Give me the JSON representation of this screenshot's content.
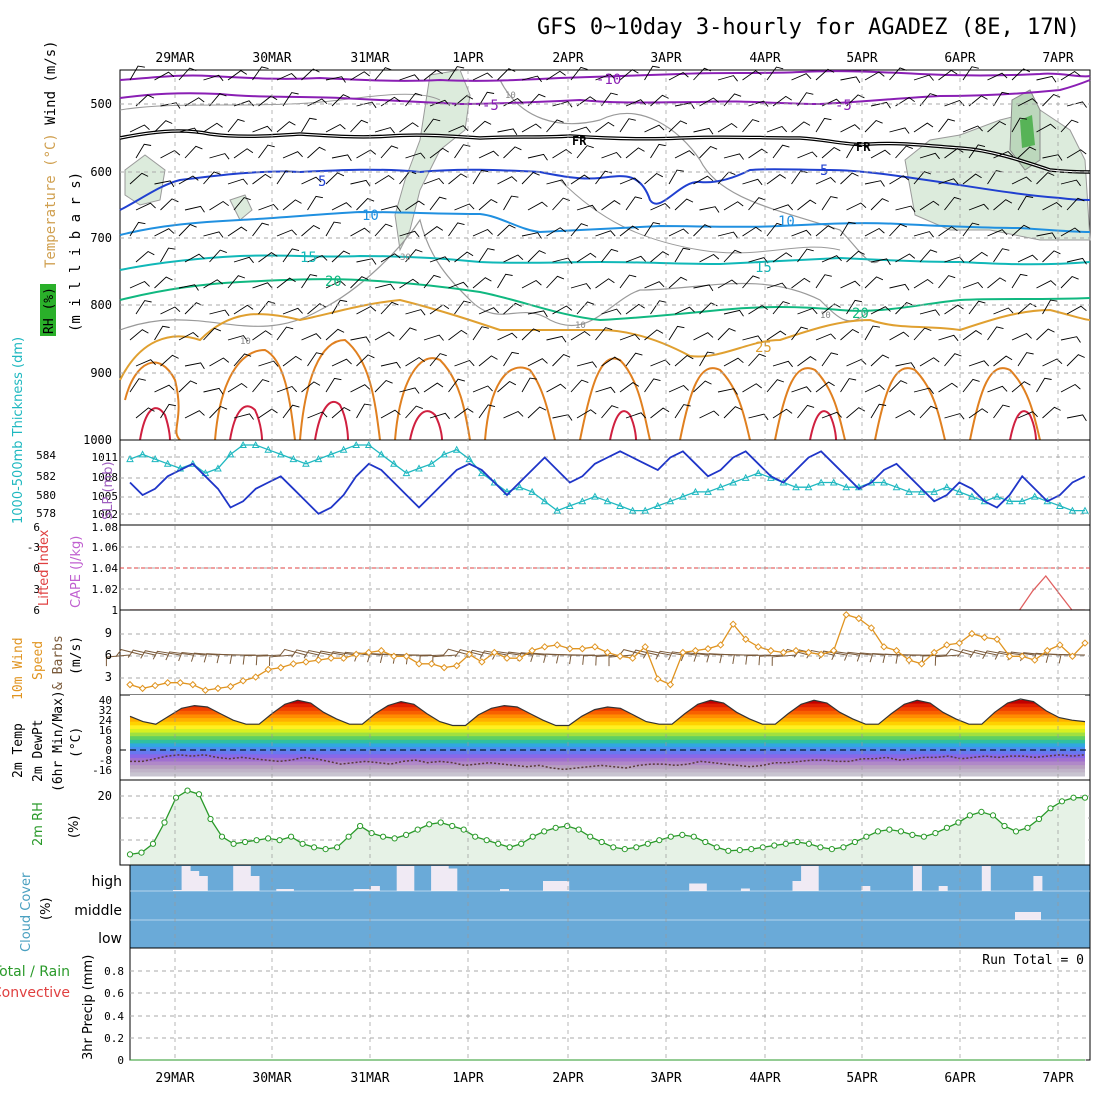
{
  "header": {
    "title": "GFS 0~10day 3-hourly for AGADEZ (8E, 17N)"
  },
  "dates": [
    "29MAR",
    "30MAR",
    "31MAR",
    "1APR",
    "2APR",
    "3APR",
    "4APR",
    "5APR",
    "6APR",
    "7APR"
  ],
  "colors": {
    "grid": "#aaaaaa",
    "rh_shade": "#d8ebd8",
    "rh_line": "#2a9a2a",
    "slp_line": "#1f35c8",
    "thickness_line": "#1fb8c0",
    "wind_speed_line": "#e09420",
    "barb": "#7a5a3a",
    "cloud_bg": "#6aaad8",
    "cape_line": "#e06060",
    "lifted_zero": "#e04040"
  },
  "panels": {
    "upper": {
      "ylabels": {
        "wind": "Wind (m/s)",
        "temp": "Temperature (°C)",
        "rh": "RH (%)",
        "units": "(m i l l i b a r s)"
      },
      "pressure_levels": [
        "500",
        "600",
        "700",
        "800",
        "900",
        "1000"
      ],
      "contour_labels": {
        "temp_neg10": "-10",
        "temp_neg5a": "-5",
        "temp_neg5b": "-5",
        "fr_a": "FR",
        "fr_b": "FR",
        "temp_5a": "5",
        "temp_5b": "5",
        "temp_10a": "10",
        "temp_10b": "10",
        "temp_15a": "15",
        "temp_15b": "15",
        "temp_20a": "20",
        "temp_20b": "20",
        "temp_25": "25",
        "rh_10a": "10",
        "rh_10b": "10",
        "rh_10c": "10",
        "rh_10d": "10",
        "rh_30": "30"
      }
    },
    "slp": {
      "label_thick": "1000-500mb Thickness (dm)",
      "label_slp": "SLP (mb)",
      "thick_ticks": [
        "584",
        "582",
        "580",
        "578"
      ],
      "slp_ticks": [
        "1011",
        "1008",
        "1005",
        "1002"
      ]
    },
    "cape": {
      "label_li": "Lifted Index",
      "label_cape": "CAPE (J/kg)",
      "li_ticks": [
        "6",
        "-3",
        "0",
        "3",
        "6"
      ],
      "cape_ticks": [
        "1.08",
        "1.06",
        "1.04",
        "1.02",
        "1"
      ]
    },
    "wind10": {
      "label1": "10m Wind",
      "label2": "Speed",
      "label3": "& Barbs",
      "units": "(m/s)",
      "ticks": [
        "9",
        "6",
        "3"
      ]
    },
    "temp2m": {
      "label1": "2m Temp",
      "label2": "2m DewPt",
      "label3": "(6hr Min/Max)",
      "units": "(°C)",
      "ticks": [
        "40",
        "32",
        "24",
        "16",
        "8",
        "0",
        "-8",
        "-16"
      ]
    },
    "rh2m": {
      "label": "2m RH",
      "units": "(%)",
      "ticks": [
        "20"
      ]
    },
    "cloud": {
      "label": "Cloud Cover",
      "units": "(%)",
      "levels": [
        "high",
        "middle",
        "low"
      ]
    },
    "precip": {
      "label1": "Total / Rain",
      "label2": "Convective",
      "label3": "3hr Precip (mm)",
      "ticks": [
        "0.8",
        "0.6",
        "0.4",
        "0.2",
        "0"
      ],
      "run_total": "Run Total = 0"
    }
  },
  "chart_data": [
    {
      "type": "line",
      "name_ref": "slp",
      "ylim": [
        1001,
        1013
      ],
      "values": [
        1007,
        1005,
        1006,
        1008,
        1009,
        1010,
        1008,
        1006,
        1003,
        1004,
        1006,
        1007,
        1008,
        1006,
        1004,
        1002,
        1003,
        1005,
        1008,
        1010,
        1009,
        1007,
        1005,
        1003,
        1005,
        1007,
        1009,
        1010,
        1009,
        1007,
        1005,
        1007,
        1009,
        1011,
        1009,
        1007,
        1008,
        1010,
        1011,
        1012,
        1011,
        1010,
        1009,
        1011,
        1012,
        1010,
        1008,
        1009,
        1011,
        1012,
        1010,
        1008,
        1007,
        1009,
        1011,
        1012,
        1010,
        1008,
        1006,
        1007,
        1009,
        1010,
        1008,
        1006,
        1004,
        1005,
        1007,
        1006,
        1004,
        1003,
        1005,
        1008,
        1006,
        1004,
        1005,
        1007,
        1008
      ]
    },
    {
      "type": "line",
      "name_ref": "thickness",
      "ylim": [
        577,
        585
      ],
      "values": [
        583.5,
        584,
        583.5,
        583,
        582.5,
        583,
        582,
        582.5,
        584,
        585,
        585,
        584.5,
        584,
        583.5,
        583,
        583.5,
        584,
        584.5,
        585,
        585,
        584,
        583,
        582,
        582.5,
        583,
        584,
        584.5,
        583.5,
        582,
        581,
        580,
        580.5,
        580,
        579,
        578,
        578.5,
        579,
        579.5,
        579,
        578.5,
        578,
        578,
        578.5,
        579,
        579.5,
        580,
        580,
        580.5,
        581,
        581.5,
        582,
        581.5,
        581,
        580.5,
        580.5,
        581,
        581,
        580.5,
        580.5,
        581,
        581,
        580.5,
        580,
        580,
        580,
        580.5,
        580,
        579.5,
        579,
        579.5,
        579,
        579,
        579.5,
        579,
        578.5,
        578,
        578
      ]
    },
    {
      "type": "line",
      "name_ref": "wind_speed_10m",
      "ylim": [
        1.5,
        10.5
      ],
      "values": [
        2.6,
        2.2,
        2.5,
        2.8,
        2.8,
        2.6,
        2.0,
        2.2,
        2.4,
        3.0,
        3.4,
        4.2,
        4.4,
        4.8,
        5.0,
        5.2,
        5.4,
        5.4,
        5.8,
        6.0,
        6.2,
        5.6,
        5.6,
        4.8,
        4.8,
        4.4,
        4.6,
        5.8,
        5.0,
        6.0,
        5.4,
        5.4,
        6.2,
        6.6,
        6.8,
        6.4,
        6.4,
        6.6,
        6.0,
        5.6,
        5.4,
        6.6,
        3.2,
        2.6,
        6.0,
        6.2,
        6.4,
        6.8,
        9.0,
        7.4,
        6.6,
        6.2,
        6.0,
        6.2,
        6.0,
        5.8,
        6.2,
        10.0,
        9.6,
        8.6,
        6.6,
        6.2,
        5.2,
        4.8,
        6.0,
        6.8,
        7.0,
        8.0,
        7.6,
        7.4,
        5.6,
        5.6,
        5.2,
        6.2,
        6.8,
        5.6,
        7.0
      ]
    },
    {
      "type": "line",
      "name_ref": "rh_2m",
      "ylim": [
        0,
        24
      ],
      "values": [
        3,
        3.5,
        6,
        12,
        19,
        21,
        20,
        13,
        8,
        6,
        6.5,
        7,
        7.5,
        7,
        8,
        6,
        5,
        4.5,
        5,
        8,
        11,
        9,
        8,
        7.5,
        8.5,
        10,
        11.5,
        12,
        11,
        10,
        8,
        7,
        6,
        5,
        6,
        8,
        9.5,
        10.5,
        11,
        10,
        8,
        6.5,
        5,
        4.5,
        5,
        6,
        7,
        8,
        8.5,
        8,
        6.5,
        5,
        4,
        4.2,
        4.5,
        5,
        5.5,
        6,
        6.5,
        6,
        5,
        4.5,
        5,
        6.5,
        8,
        9.5,
        10,
        9.5,
        8.5,
        8,
        9,
        10.5,
        12,
        14,
        15,
        14,
        11,
        9.5,
        10.5,
        13,
        16,
        18,
        19,
        19
      ]
    },
    {
      "type": "area",
      "name_ref": "temp_2m",
      "ylim": [
        -20,
        44
      ],
      "values": [
        28,
        24,
        22,
        28,
        34,
        36,
        35,
        30,
        25,
        22,
        22,
        30,
        37,
        40,
        38,
        31,
        26,
        22,
        22,
        30,
        36,
        39,
        37,
        30,
        24,
        21,
        21,
        29,
        34,
        36,
        35,
        30,
        25,
        21,
        21,
        28,
        33,
        35,
        34,
        29,
        24,
        22,
        22,
        30,
        37,
        40,
        38,
        31,
        26,
        22,
        22,
        30,
        37,
        40,
        38,
        31,
        26,
        22,
        22,
        30,
        37,
        40,
        38,
        31,
        26,
        22,
        22,
        31,
        38,
        41,
        39,
        32,
        27,
        25,
        24
      ]
    },
    {
      "type": "line",
      "name_ref": "dewpoint_2m",
      "ylim": [
        -20,
        44
      ],
      "values": [
        -6,
        -6,
        -4,
        -2,
        -1,
        -2,
        -1,
        -3,
        -4,
        -3,
        -4,
        -5,
        -6,
        -5,
        -3,
        -4,
        -6,
        -8,
        -7,
        -6,
        -7,
        -8,
        -6,
        -5,
        -7,
        -6,
        -7,
        -9,
        -8,
        -7,
        -8,
        -9,
        -10,
        -9,
        -11,
        -12,
        -11,
        -10,
        -9,
        -10,
        -11,
        -9,
        -8,
        -8,
        -9,
        -8,
        -6,
        -7,
        -8,
        -9,
        -10,
        -9,
        -7,
        -7,
        -6,
        -5,
        -5,
        -6,
        -6,
        -4,
        -4,
        -3,
        -5,
        -4,
        -3,
        -3,
        -2,
        -4,
        -3,
        -2,
        -3,
        -2,
        -2,
        -3,
        -2,
        -1,
        -2,
        -1
      ]
    },
    {
      "type": "line",
      "name_ref": "cape",
      "ylim": [
        1,
        1.08
      ],
      "values": [
        1,
        1,
        1,
        1,
        1,
        1,
        1,
        1,
        1,
        1,
        1,
        1,
        1,
        1,
        1,
        1,
        1,
        1,
        1,
        1,
        1,
        1,
        1,
        1,
        1,
        1,
        1,
        1,
        1,
        1,
        1,
        1,
        1,
        1,
        1,
        1,
        1,
        1,
        1,
        1,
        1,
        1,
        1,
        1,
        1,
        1,
        1,
        1,
        1,
        1,
        1,
        1,
        1,
        1,
        1,
        1,
        1,
        1,
        1,
        1,
        1,
        1,
        1,
        1,
        1,
        1,
        1,
        1,
        1,
        1.018,
        1.032,
        1.016,
        1,
        1
      ]
    },
    {
      "type": "bar",
      "name_ref": "cloud_high",
      "ylim": [
        0,
        100
      ],
      "values": [
        0,
        0,
        0,
        0,
        0,
        4,
        100,
        80,
        60,
        0,
        0,
        0,
        100,
        100,
        60,
        0,
        0,
        8,
        8,
        0,
        0,
        0,
        0,
        0,
        0,
        0,
        8,
        8,
        20,
        0,
        0,
        100,
        100,
        0,
        0,
        100,
        100,
        90,
        0,
        0,
        0,
        0,
        0,
        8,
        0,
        0,
        0,
        0,
        40,
        40,
        40,
        0,
        0,
        0,
        0,
        0,
        0,
        0,
        0,
        0,
        0,
        0,
        0,
        0,
        0,
        30,
        30,
        0,
        0,
        0,
        0,
        10,
        0,
        0,
        0,
        0,
        0,
        40,
        100,
        100,
        0,
        0,
        0,
        0,
        0,
        20,
        0,
        0,
        0,
        0,
        0,
        100,
        0,
        0,
        20,
        0,
        0,
        0,
        0,
        100,
        0,
        0,
        0,
        0,
        0,
        60,
        0,
        0,
        0,
        0,
        0
      ]
    },
    {
      "type": "line",
      "name_ref": "precip_3hr",
      "ylim": [
        0,
        1
      ],
      "values": [
        0,
        0,
        0,
        0,
        0,
        0,
        0,
        0,
        0,
        0
      ]
    }
  ]
}
